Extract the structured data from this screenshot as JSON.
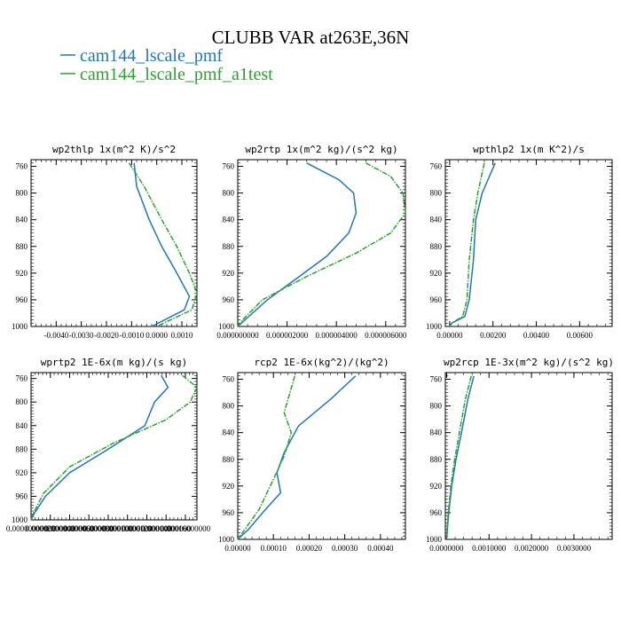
{
  "figure": {
    "title": "CLUBB VAR at263E,36N",
    "series_names": [
      "cam144_lscale_pmf",
      "cam144_lscale_pmf_a1test"
    ],
    "colors": {
      "series1": "#1f77b4",
      "series2": "#2ca02c"
    }
  },
  "chart_data": [
    {
      "type": "line",
      "title": "wp2thlp  1x(m^2 K)/s^2",
      "ylim": [
        1000,
        750
      ],
      "xlim": [
        -0.005,
        0.0016
      ],
      "y_ticks": [
        "760",
        "800",
        "840",
        "880",
        "920",
        "960",
        "1000"
      ],
      "x_ticks": [
        {
          "v": -0.004,
          "label": "-0.0040"
        },
        {
          "v": -0.003,
          "label": "-0.0030"
        },
        {
          "v": -0.002,
          "label": "-0.0020"
        },
        {
          "v": -0.001,
          "label": "-0.0010"
        },
        {
          "v": 0.0,
          "label": "0.0000"
        },
        {
          "v": 0.001,
          "label": "0.0010"
        }
      ],
      "series": [
        {
          "name": "cam144_lscale_pmf",
          "points": [
            [
              -0.0009,
              755
            ],
            [
              -0.0008,
              790
            ],
            [
              -0.0003,
              840
            ],
            [
              0.0002,
              880
            ],
            [
              0.0008,
              920
            ],
            [
              0.0013,
              955
            ],
            [
              0.0011,
              975
            ],
            [
              -0.0002,
              1000
            ]
          ]
        },
        {
          "name": "cam144_lscale_pmf_a1test",
          "points": [
            [
              -0.0011,
              755
            ],
            [
              -0.0005,
              790
            ],
            [
              0.0002,
              840
            ],
            [
              0.0008,
              880
            ],
            [
              0.0013,
              920
            ],
            [
              0.0016,
              950
            ],
            [
              0.0014,
              975
            ],
            [
              0.0,
              1000
            ]
          ]
        }
      ]
    },
    {
      "type": "line",
      "title": "wp2rtp  1x(m^2 kg)/(s^2 kg)",
      "ylim": [
        1000,
        750
      ],
      "xlim": [
        0,
        6.8e-06
      ],
      "y_ticks": [
        "760",
        "800",
        "840",
        "880",
        "920",
        "960",
        "1000"
      ],
      "x_ticks": [
        {
          "v": 0,
          "label": "0.000000000"
        },
        {
          "v": 2e-06,
          "label": "0.000002000"
        },
        {
          "v": 4e-06,
          "label": "0.000004000"
        },
        {
          "v": 6e-06,
          "label": "0.000006000"
        }
      ],
      "series": [
        {
          "name": "cam144_lscale_pmf",
          "points": [
            [
              2.8e-06,
              755
            ],
            [
              4.1e-06,
              780
            ],
            [
              4.7e-06,
              800
            ],
            [
              4.8e-06,
              830
            ],
            [
              4.5e-06,
              860
            ],
            [
              3.6e-06,
              895
            ],
            [
              2.5e-06,
              925
            ],
            [
              1.2e-06,
              960
            ],
            [
              3e-07,
              990
            ],
            [
              0.0,
              1000
            ]
          ]
        },
        {
          "name": "cam144_lscale_pmf_a1test",
          "points": [
            [
              5.2e-06,
              755
            ],
            [
              6.2e-06,
              775
            ],
            [
              6.7e-06,
              800
            ],
            [
              6.8e-06,
              830
            ],
            [
              6.2e-06,
              860
            ],
            [
              4.8e-06,
              890
            ],
            [
              2.8e-06,
              925
            ],
            [
              1e-06,
              960
            ],
            [
              2e-07,
              990
            ],
            [
              0.0,
              1000
            ]
          ]
        }
      ]
    },
    {
      "type": "line",
      "title": "wpthlp2  1x(m K^2)/s",
      "ylim": [
        1000,
        750
      ],
      "xlim": [
        -0.0002,
        0.0075
      ],
      "y_ticks": [
        "760",
        "800",
        "840",
        "880",
        "920",
        "960",
        "1000"
      ],
      "x_ticks": [
        {
          "v": 0,
          "label": "0.00000"
        },
        {
          "v": 0.002,
          "label": "0.00200"
        },
        {
          "v": 0.004,
          "label": "0.00400"
        },
        {
          "v": 0.006,
          "label": "0.00600"
        }
      ],
      "series": [
        {
          "name": "cam144_lscale_pmf",
          "points": [
            [
              0.0021,
              755
            ],
            [
              0.0015,
              800
            ],
            [
              0.0012,
              840
            ],
            [
              0.0011,
              900
            ],
            [
              0.0009,
              960
            ],
            [
              0.0007,
              985
            ],
            [
              0.0001,
              995
            ],
            [
              0.0,
              1000
            ]
          ]
        },
        {
          "name": "cam144_lscale_pmf_a1test",
          "points": [
            [
              0.0016,
              755
            ],
            [
              0.0013,
              800
            ],
            [
              0.0011,
              840
            ],
            [
              0.0009,
              900
            ],
            [
              0.0008,
              960
            ],
            [
              0.0006,
              985
            ],
            [
              0.0001,
              995
            ],
            [
              0.0,
              1000
            ]
          ]
        }
      ]
    },
    {
      "type": "line",
      "title": "wprtp2  1E-6x(m kg)/(s kg)",
      "ylim": [
        1000,
        750
      ],
      "xlim": [
        0,
        0.000172
      ],
      "y_ticks": [
        "760",
        "800",
        "840",
        "880",
        "920",
        "960",
        "1000"
      ],
      "x_ticks": [
        {
          "v": 0,
          "label": "0.00000000000"
        },
        {
          "v": 2e-05,
          "label": "0.00002000000"
        },
        {
          "v": 4e-05,
          "label": "0.00004000000"
        },
        {
          "v": 6e-05,
          "label": "0.00006000000"
        },
        {
          "v": 8e-05,
          "label": "0.00008000000"
        },
        {
          "v": 0.0001,
          "label": "0.00010000000"
        },
        {
          "v": 0.00012,
          "label": "0.00012000000"
        },
        {
          "v": 0.00014,
          "label": "0.00014000000"
        },
        {
          "v": 0.00016,
          "label": "0.00016000000"
        }
      ],
      "series": [
        {
          "name": "cam144_lscale_pmf",
          "points": [
            [
              0.000135,
              755
            ],
            [
              0.000142,
              775
            ],
            [
              0.000128,
              800
            ],
            [
              0.000118,
              840
            ],
            [
              8e-05,
              880
            ],
            [
              4e-05,
              920
            ],
            [
              1.5e-05,
              960
            ],
            [
              3e-06,
              990
            ],
            [
              0.0,
              1000
            ]
          ]
        },
        {
          "name": "cam144_lscale_pmf_a1test",
          "points": [
            [
              0.000157,
              755
            ],
            [
              0.000172,
              775
            ],
            [
              0.000165,
              800
            ],
            [
              0.00014,
              830
            ],
            [
              8.5e-05,
              870
            ],
            [
              4e-05,
              910
            ],
            [
              1.3e-05,
              955
            ],
            [
              2e-06,
              990
            ],
            [
              0.0,
              1000
            ]
          ]
        }
      ]
    },
    {
      "type": "line",
      "title": "rcp2  1E-6x(kg^2)/(kg^2)",
      "ylim": [
        1000,
        750
      ],
      "xlim": [
        0,
        0.00047
      ],
      "y_ticks": [
        "760",
        "800",
        "840",
        "880",
        "920",
        "960",
        "1000"
      ],
      "x_ticks": [
        {
          "v": 0,
          "label": "0.00000"
        },
        {
          "v": 0.0001,
          "label": "0.00010"
        },
        {
          "v": 0.0002,
          "label": "0.00020"
        },
        {
          "v": 0.0003,
          "label": "0.00030"
        },
        {
          "v": 0.0004,
          "label": "0.00040"
        }
      ],
      "series": [
        {
          "name": "cam144_lscale_pmf",
          "points": [
            [
              0.00033,
              755
            ],
            [
              0.00026,
              790
            ],
            [
              0.00017,
              830
            ],
            [
              0.00013,
              870
            ],
            [
              0.00011,
              900
            ],
            [
              0.00012,
              930
            ],
            [
              7e-05,
              960
            ],
            [
              3e-05,
              985
            ],
            [
              0.0,
              1000
            ]
          ]
        },
        {
          "name": "cam144_lscale_pmf_a1test",
          "points": [
            [
              0.00016,
              755
            ],
            [
              0.00013,
              810
            ],
            [
              0.00015,
              840
            ],
            [
              0.00013,
              875
            ],
            [
              0.0001,
              910
            ],
            [
              6e-05,
              955
            ],
            [
              2e-05,
              985
            ],
            [
              0.0,
              1000
            ]
          ]
        }
      ]
    },
    {
      "type": "line",
      "title": "wp2rcp  1E-3x(m^2 kg)/(s^2 kg)",
      "ylim": [
        1000,
        750
      ],
      "xlim": [
        -3e-05,
        0.0039
      ],
      "y_ticks": [
        "760",
        "800",
        "840",
        "880",
        "920",
        "960",
        "1000"
      ],
      "x_ticks": [
        {
          "v": 0,
          "label": "0.0000000"
        },
        {
          "v": 0.001,
          "label": "0.0010000"
        },
        {
          "v": 0.002,
          "label": "0.0020000"
        },
        {
          "v": 0.003,
          "label": "0.0030000"
        }
      ],
      "series": [
        {
          "name": "cam144_lscale_pmf",
          "points": [
            [
              0.00064,
              755
            ],
            [
              0.0005,
              790
            ],
            [
              0.00035,
              840
            ],
            [
              0.00022,
              880
            ],
            [
              0.00012,
              920
            ],
            [
              5e-05,
              960
            ],
            [
              1e-05,
              990
            ],
            [
              0.0,
              1000
            ]
          ]
        },
        {
          "name": "cam144_lscale_pmf_a1test",
          "points": [
            [
              0.00058,
              755
            ],
            [
              0.00044,
              790
            ],
            [
              0.0003,
              840
            ],
            [
              0.00019,
              880
            ],
            [
              0.0001,
              920
            ],
            [
              4e-05,
              960
            ],
            [
              1e-05,
              990
            ],
            [
              0.0,
              1000
            ]
          ]
        }
      ]
    }
  ]
}
